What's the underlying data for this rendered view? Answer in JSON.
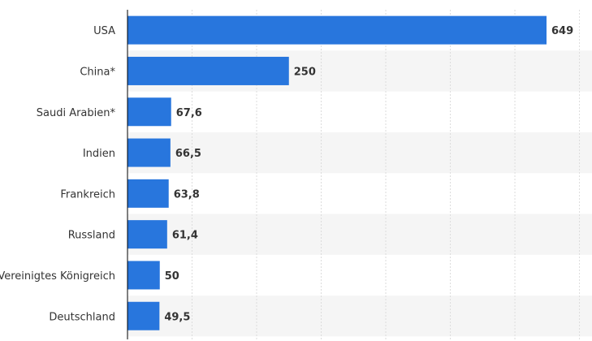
{
  "chart_data": {
    "type": "bar",
    "orientation": "horizontal",
    "categories": [
      "USA",
      "China*",
      "Saudi Arabien*",
      "Indien",
      "Frankreich",
      "Russland",
      "Vereinigtes Königreich",
      "Deutschland"
    ],
    "values": [
      649,
      250,
      67.6,
      66.5,
      63.8,
      61.4,
      50,
      49.5
    ],
    "value_labels": [
      "649",
      "250",
      "67,6",
      "66,5",
      "63,8",
      "61,4",
      "50",
      "49,5"
    ],
    "xlim": [
      0,
      700
    ],
    "grid": true,
    "bar_color": "#2876dd",
    "stripe_color": "#f5f5f5",
    "gridline_color": "#dcdcdc",
    "axis_color": "#000000"
  }
}
